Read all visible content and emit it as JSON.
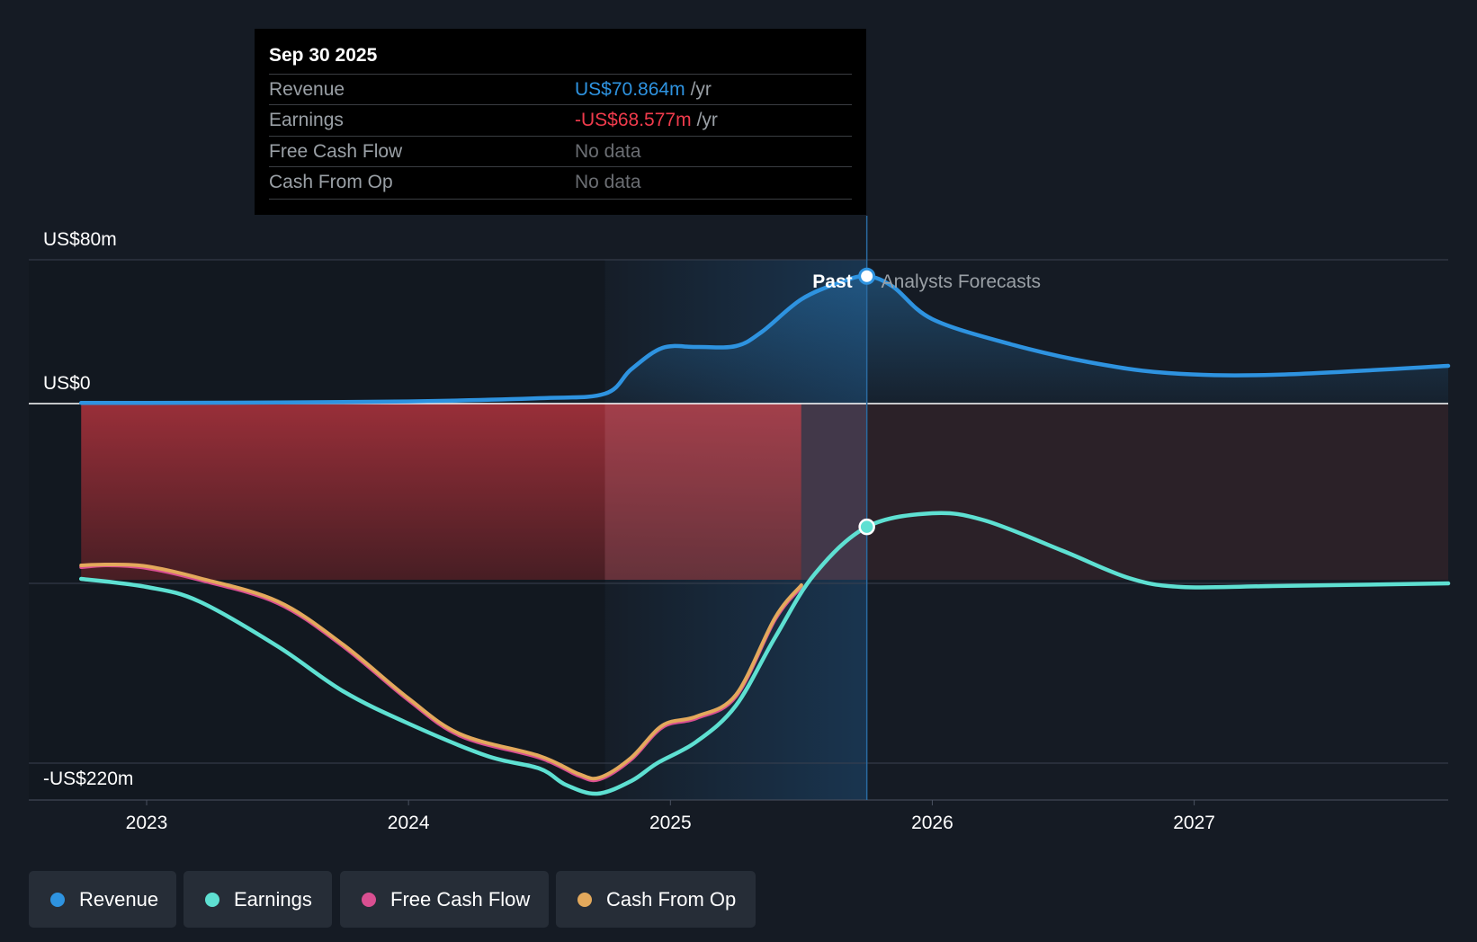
{
  "tooltip": {
    "date": "Sep 30 2025",
    "rows": [
      {
        "label": "Revenue",
        "value": "US$70.864m",
        "unit": "/yr",
        "color": "#2e93e0"
      },
      {
        "label": "Earnings",
        "value": "-US$68.577m",
        "unit": "/yr",
        "color": "#ef3b4c"
      },
      {
        "label": "Free Cash Flow",
        "value": "No data",
        "unit": "",
        "color": "#6b6e73"
      },
      {
        "label": "Cash From Op",
        "value": "No data",
        "unit": "",
        "color": "#6b6e73"
      }
    ]
  },
  "legend": [
    {
      "label": "Revenue",
      "color": "#2e93e0"
    },
    {
      "label": "Earnings",
      "color": "#5ee0d2"
    },
    {
      "label": "Free Cash Flow",
      "color": "#d94f91"
    },
    {
      "label": "Cash From Op",
      "color": "#e3a95c"
    }
  ],
  "chart_data": {
    "type": "line",
    "title": "",
    "ylabel": "",
    "xlabel": "",
    "ylim": [
      -220,
      80
    ],
    "xlim": [
      2022.55,
      2027.97
    ],
    "y_tick_labels": [
      {
        "value": 80,
        "label": "US$80m"
      },
      {
        "value": 0,
        "label": "US$0"
      },
      {
        "value": -220,
        "label": "-US$220m"
      }
    ],
    "gridlines": [
      80,
      0,
      -100,
      -200
    ],
    "x_ticks": [
      2023,
      2024,
      2025,
      2026,
      2027
    ],
    "x_tick_labels": [
      "2023",
      "2024",
      "2025",
      "2026",
      "2027"
    ],
    "divider_x": 2025.75,
    "past_start_x": 2024.75,
    "region_labels": {
      "past": "Past",
      "forecast": "Analysts Forecasts"
    },
    "series": [
      {
        "name": "Revenue",
        "color": "#2e93e0",
        "points": [
          [
            2022.75,
            0.4
          ],
          [
            2023.0,
            0.4
          ],
          [
            2023.5,
            0.6
          ],
          [
            2024.0,
            1.2
          ],
          [
            2024.5,
            3.0
          ],
          [
            2024.75,
            5.5
          ],
          [
            2024.85,
            19
          ],
          [
            2024.97,
            31
          ],
          [
            2025.1,
            31.5
          ],
          [
            2025.25,
            32
          ],
          [
            2025.35,
            40
          ],
          [
            2025.5,
            58
          ],
          [
            2025.65,
            67.5
          ],
          [
            2025.75,
            70.864
          ],
          [
            2025.85,
            65
          ],
          [
            2026.0,
            47
          ],
          [
            2026.3,
            33
          ],
          [
            2026.6,
            23
          ],
          [
            2026.9,
            17
          ],
          [
            2027.3,
            16
          ],
          [
            2027.97,
            21
          ]
        ]
      },
      {
        "name": "Earnings",
        "color": "#5ee0d2",
        "points": [
          [
            2022.75,
            -97.5
          ],
          [
            2023.0,
            -102
          ],
          [
            2023.2,
            -110
          ],
          [
            2023.5,
            -135
          ],
          [
            2023.75,
            -160
          ],
          [
            2024.0,
            -178
          ],
          [
            2024.3,
            -196
          ],
          [
            2024.5,
            -203
          ],
          [
            2024.6,
            -212
          ],
          [
            2024.72,
            -217
          ],
          [
            2024.85,
            -210
          ],
          [
            2024.95,
            -200
          ],
          [
            2025.1,
            -188
          ],
          [
            2025.25,
            -168
          ],
          [
            2025.4,
            -130
          ],
          [
            2025.55,
            -95
          ],
          [
            2025.75,
            -68.577
          ],
          [
            2026.0,
            -61
          ],
          [
            2026.2,
            -65
          ],
          [
            2026.5,
            -82
          ],
          [
            2026.75,
            -97
          ],
          [
            2026.95,
            -102
          ],
          [
            2027.3,
            -101.5
          ],
          [
            2027.97,
            -100
          ]
        ]
      },
      {
        "name": "Free Cash Flow",
        "color": "#d94f91",
        "points": [
          [
            2022.75,
            -91
          ],
          [
            2022.85,
            -90
          ],
          [
            2023.0,
            -91.5
          ],
          [
            2023.2,
            -98
          ],
          [
            2023.5,
            -111
          ],
          [
            2023.75,
            -135
          ],
          [
            2024.0,
            -165
          ],
          [
            2024.2,
            -185
          ],
          [
            2024.5,
            -197
          ],
          [
            2024.65,
            -207
          ],
          [
            2024.73,
            -209
          ],
          [
            2024.85,
            -198
          ],
          [
            2024.97,
            -180
          ],
          [
            2025.1,
            -175
          ],
          [
            2025.25,
            -163
          ],
          [
            2025.4,
            -120
          ],
          [
            2025.5,
            -102
          ]
        ]
      },
      {
        "name": "Cash From Op",
        "color": "#e3a95c",
        "points": [
          [
            2022.75,
            -90
          ],
          [
            2022.85,
            -89.5
          ],
          [
            2023.0,
            -90.5
          ],
          [
            2023.2,
            -97
          ],
          [
            2023.5,
            -110
          ],
          [
            2023.75,
            -134
          ],
          [
            2024.0,
            -164
          ],
          [
            2024.2,
            -184
          ],
          [
            2024.5,
            -196
          ],
          [
            2024.65,
            -206
          ],
          [
            2024.73,
            -208
          ],
          [
            2024.85,
            -197
          ],
          [
            2024.97,
            -179
          ],
          [
            2025.1,
            -174
          ],
          [
            2025.25,
            -162
          ],
          [
            2025.4,
            -119
          ],
          [
            2025.5,
            -101
          ]
        ]
      }
    ]
  }
}
